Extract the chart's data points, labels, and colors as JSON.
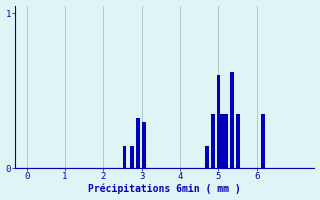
{
  "xlabel": "Précipitations 6min ( mm )",
  "bar_color": "#0000bb",
  "background_color": "#dff4f4",
  "grid_color": "#aacccc",
  "text_color": "#0000bb",
  "xlim": [
    -0.3,
    7.5
  ],
  "ylim": [
    0,
    1.05
  ],
  "yticks": [
    0,
    1
  ],
  "xticks": [
    0,
    1,
    2,
    3,
    4,
    5,
    6
  ],
  "bar_positions": [
    2.55,
    2.75,
    2.9,
    3.05,
    4.7,
    4.85,
    5.0,
    5.1,
    5.2,
    5.35,
    5.5,
    6.15
  ],
  "bar_heights": [
    0.14,
    0.14,
    0.32,
    0.3,
    0.14,
    0.35,
    0.6,
    0.35,
    0.35,
    0.62,
    0.35,
    0.35
  ],
  "bar_width": 0.1,
  "figwidth": 3.2,
  "figheight": 2.0,
  "dpi": 100
}
